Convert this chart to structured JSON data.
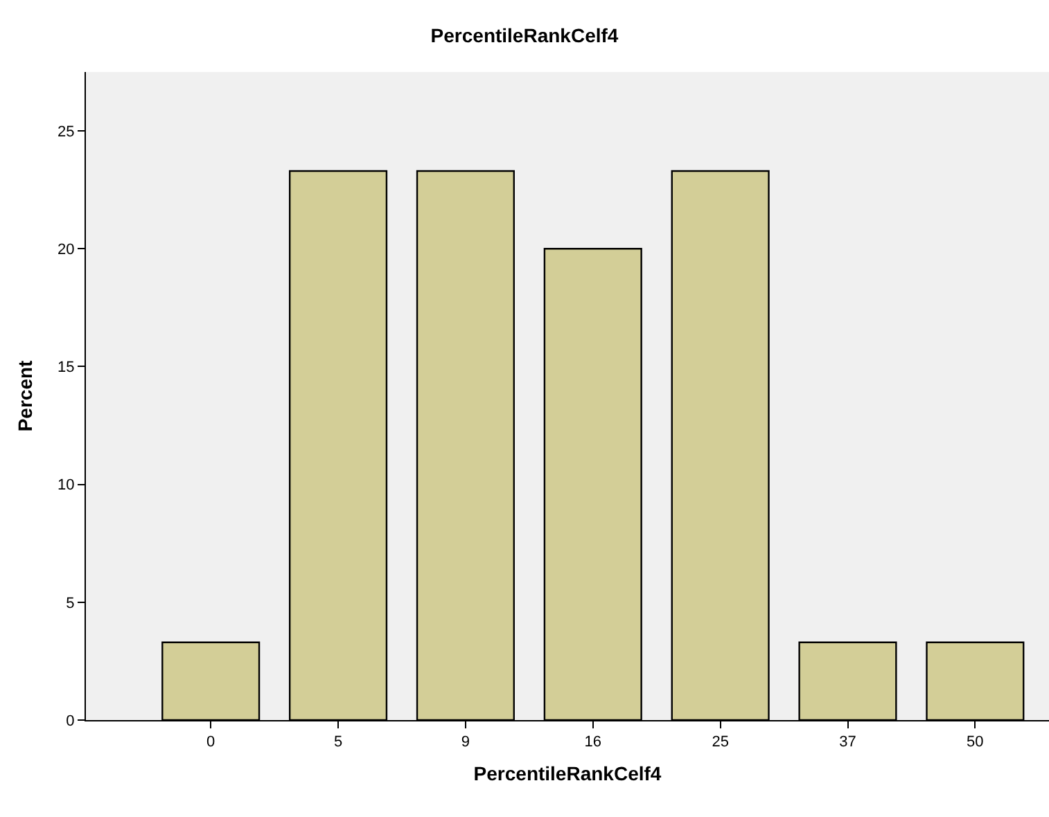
{
  "chart_data": {
    "type": "bar",
    "title": "PercentileRankCelf4",
    "xlabel": "PercentileRankCelf4",
    "ylabel": "Percent",
    "categories": [
      "0",
      "5",
      "9",
      "16",
      "25",
      "37",
      "50"
    ],
    "values": [
      3.3,
      23.3,
      23.3,
      20,
      23.3,
      3.3,
      3.3
    ],
    "color": "#d3ce97",
    "ylim": [
      0,
      27.5
    ],
    "yticks": [
      0,
      5,
      10,
      15,
      20,
      25
    ],
    "grid": false,
    "legend": false
  }
}
